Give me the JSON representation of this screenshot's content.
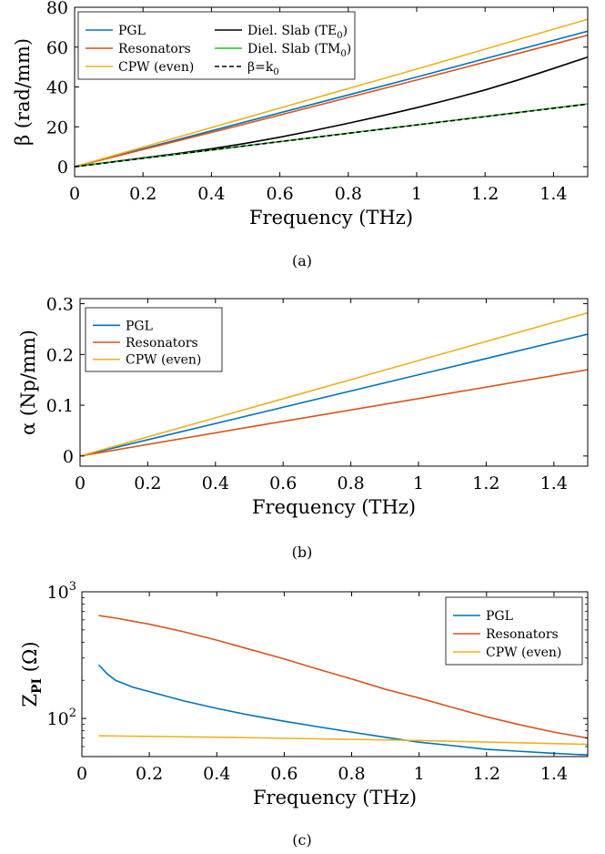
{
  "colors": {
    "PGL": "#0072BD",
    "Resonators": "#D95319",
    "CPW (even)": "#EDB120",
    "Diel. Slab (TE0)": "#000000",
    "Diel. Slab (TM0)": "#22C41E",
    "beta=k0": "#000000"
  },
  "chart_data": [
    {
      "id": "a",
      "type": "line",
      "caption": "(a)",
      "xlabel": "Frequency (THz)",
      "ylabel": "β (rad/mm)",
      "xlim": [
        0,
        1.5
      ],
      "ylim": [
        -5,
        80
      ],
      "xticks": [
        0,
        0.2,
        0.4,
        0.6,
        0.8,
        1,
        1.2,
        1.4
      ],
      "xtick_labels": [
        "0",
        "0.2",
        "0.4",
        "0.6",
        "0.8",
        "1",
        "1.2",
        "1.4"
      ],
      "yticks": [
        0,
        20,
        40,
        60,
        80
      ],
      "ytick_labels": [
        "0",
        "20",
        "40",
        "60",
        "80"
      ],
      "legend": {
        "position": "top-left",
        "columns": 2
      },
      "series": [
        {
          "name": "PGL",
          "color": "PGL",
          "dash": false,
          "x": [
            0,
            0.5,
            1.0,
            1.5
          ],
          "y": [
            0,
            22.5,
            45,
            68
          ]
        },
        {
          "name": "Resonators",
          "color": "Resonators",
          "dash": false,
          "x": [
            0,
            0.5,
            1.0,
            1.5
          ],
          "y": [
            0,
            21.5,
            43.5,
            66
          ]
        },
        {
          "name": "CPW (even)",
          "color": "CPW (even)",
          "dash": false,
          "x": [
            0,
            0.5,
            1.0,
            1.5
          ],
          "y": [
            0,
            24.5,
            49,
            74
          ]
        },
        {
          "name": "Diel. Slab (TE",
          "sub": "0",
          "suffix": ")",
          "color": "Diel. Slab (TE0)",
          "dash": false,
          "x": [
            0,
            0.1,
            0.2,
            0.3,
            0.4,
            0.5,
            0.6,
            0.7,
            0.8,
            0.9,
            1.0,
            1.1,
            1.2,
            1.3,
            1.4,
            1.5
          ],
          "y": [
            0,
            2.2,
            4.4,
            6.6,
            9.0,
            11.7,
            14.8,
            18.2,
            21.8,
            25.6,
            29.6,
            33.9,
            38.5,
            43.7,
            49.3,
            55
          ]
        },
        {
          "name": "Diel. Slab (TM",
          "sub": "0",
          "suffix": ")",
          "color": "Diel. Slab (TM0)",
          "dash": false,
          "x": [
            0,
            1.5
          ],
          "y": [
            0,
            31.5
          ]
        },
        {
          "name": "β=k",
          "sub": "0",
          "suffix": "",
          "color": "beta=k0",
          "dash": true,
          "x": [
            0,
            1.5
          ],
          "y": [
            0,
            31.4
          ]
        }
      ]
    },
    {
      "id": "b",
      "type": "line",
      "caption": "(b)",
      "xlabel": "Frequency (THz)",
      "ylabel": "α (Np/mm)",
      "xlim": [
        0,
        1.5
      ],
      "ylim": [
        -0.02,
        0.31
      ],
      "xticks": [
        0,
        0.2,
        0.4,
        0.6,
        0.8,
        1,
        1.2,
        1.4
      ],
      "xtick_labels": [
        "0",
        "0.2",
        "0.4",
        "0.6",
        "0.8",
        "1",
        "1.2",
        "1.4"
      ],
      "yticks": [
        0,
        0.1,
        0.2,
        0.3
      ],
      "ytick_labels": [
        "0",
        "0.1",
        "0.2",
        "0.3"
      ],
      "legend": {
        "position": "top-left",
        "columns": 1
      },
      "series": [
        {
          "name": "PGL",
          "color": "PGL",
          "dash": false,
          "x": [
            0,
            0.5,
            1.0,
            1.5
          ],
          "y": [
            0,
            0.08,
            0.16,
            0.24
          ]
        },
        {
          "name": "Resonators",
          "color": "Resonators",
          "dash": false,
          "x": [
            0,
            0.5,
            1.0,
            1.5
          ],
          "y": [
            0,
            0.057,
            0.113,
            0.17
          ]
        },
        {
          "name": "CPW (even)",
          "color": "CPW (even)",
          "dash": false,
          "x": [
            0,
            0.5,
            1.0,
            1.5
          ],
          "y": [
            0,
            0.094,
            0.188,
            0.282
          ]
        }
      ]
    },
    {
      "id": "c",
      "type": "line",
      "caption": "(c)",
      "xlabel": "Frequency (THz)",
      "ylabel": "Z",
      "ylabel_sub": "PI",
      "ylabel_suffix": " (Ω)",
      "yscale": "log",
      "xlim": [
        0,
        1.5
      ],
      "ylim": [
        50,
        1000
      ],
      "xticks": [
        0,
        0.2,
        0.4,
        0.6,
        0.8,
        1,
        1.2,
        1.4
      ],
      "xtick_labels": [
        "0",
        "0.2",
        "0.4",
        "0.6",
        "0.8",
        "1",
        "1.2",
        "1.4"
      ],
      "yticks": [
        100,
        1000
      ],
      "ytick_labels": [
        {
          "base": "10",
          "exp": "2"
        },
        {
          "base": "10",
          "exp": "3"
        }
      ],
      "legend": {
        "position": "top-right",
        "columns": 1
      },
      "series": [
        {
          "name": "PGL",
          "color": "PGL",
          "dash": false,
          "x": [
            0.05,
            0.075,
            0.1,
            0.15,
            0.2,
            0.3,
            0.4,
            0.5,
            0.6,
            0.7,
            0.8,
            0.9,
            1.0,
            1.1,
            1.2,
            1.3,
            1.4,
            1.5
          ],
          "y": [
            265,
            225,
            200,
            177,
            163,
            138,
            120,
            106,
            95,
            86,
            78,
            71,
            65,
            61,
            57,
            55,
            53,
            51.5
          ]
        },
        {
          "name": "Resonators",
          "color": "Resonators",
          "dash": false,
          "x": [
            0.05,
            0.1,
            0.2,
            0.3,
            0.4,
            0.5,
            0.6,
            0.7,
            0.8,
            0.9,
            1.0,
            1.1,
            1.2,
            1.3,
            1.4,
            1.5
          ],
          "y": [
            650,
            620,
            555,
            485,
            415,
            350,
            295,
            245,
            205,
            170,
            145,
            122,
            103,
            89,
            78,
            70
          ]
        },
        {
          "name": "CPW (even)",
          "color": "CPW (even)",
          "dash": false,
          "x": [
            0.05,
            0.5,
            1.0,
            1.5
          ],
          "y": [
            73,
            70.5,
            67,
            62.5
          ]
        }
      ]
    }
  ]
}
